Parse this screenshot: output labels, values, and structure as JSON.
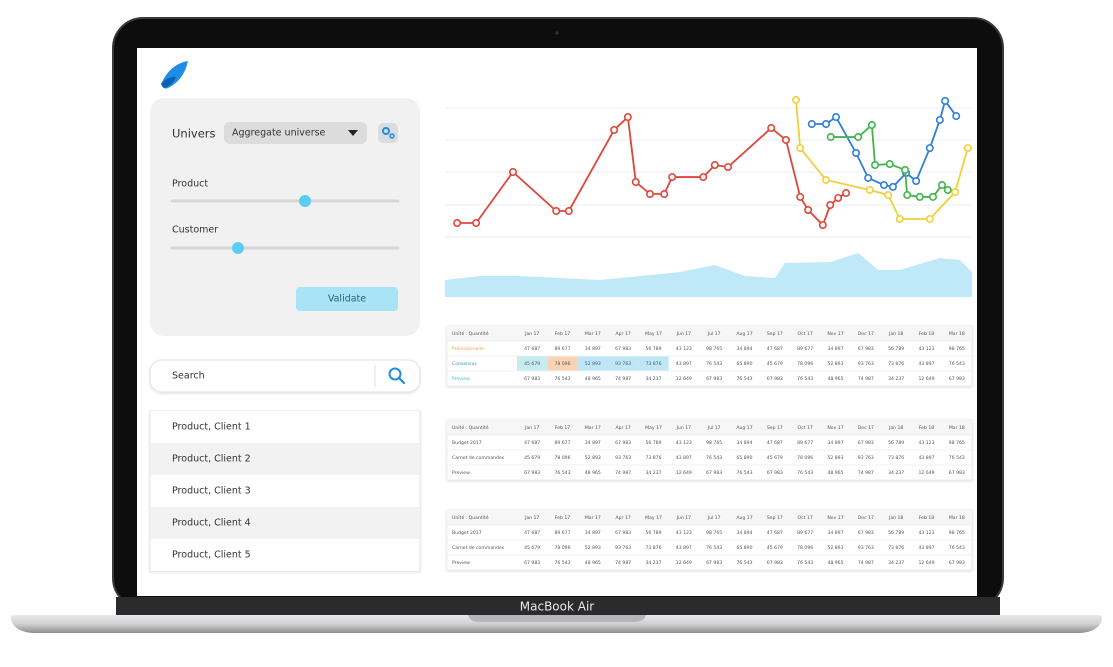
{
  "device": {
    "label": "MacBook Air"
  },
  "filters": {
    "universe_label": "Univers",
    "universe_value": "Aggregate universe",
    "sliders": [
      {
        "label": "Product"
      },
      {
        "label": "Customer"
      }
    ],
    "button": "Validate"
  },
  "search": {
    "placeholder": "Search"
  },
  "list": [
    "Product, Client 1",
    "Product, Client 2",
    "Product, Client 3",
    "Product, Client 4",
    "Product, Client 5"
  ],
  "chart_data": [
    {
      "type": "line",
      "xlim": [
        0,
        100
      ],
      "ylim": [
        0,
        100
      ],
      "series": [
        {
          "color": "#e0453a",
          "x": [
            2.3,
            5.9,
            12.9,
            21.1,
            23.5,
            32.1,
            34.7,
            36.2,
            38.9,
            41.6,
            43.1,
            49.0,
            51.2,
            53.7,
            61.9,
            64.7,
            67.4,
            68.9,
            71.7,
            73.1,
            74.6,
            76.1
          ],
          "values": [
            11.7,
            11.7,
            46.9,
            20.0,
            20.0,
            75.9,
            84.8,
            40.0,
            31.7,
            31.7,
            43.4,
            43.4,
            51.7,
            50.3,
            77.2,
            69.0,
            29.7,
            20.7,
            10.3,
            24.1,
            29.0,
            32.4
          ]
        },
        {
          "color": "#f2cf3a",
          "x": [
            66.6,
            67.4,
            72.3,
            80.6,
            84.1,
            86.3,
            92.0,
            96.8,
            99.2
          ],
          "values": [
            96.6,
            63.4,
            41.4,
            34.5,
            31.0,
            14.5,
            14.5,
            33.1,
            63.4
          ]
        },
        {
          "color": "#2f7fd8",
          "x": [
            69.6,
            72.3,
            74.2,
            78.0,
            80.3,
            83.3,
            85.0,
            87.5,
            89.4,
            92.0,
            93.9,
            94.9,
            97.0
          ],
          "values": [
            80.0,
            80.0,
            84.8,
            60.0,
            42.8,
            37.9,
            36.6,
            46.2,
            40.7,
            63.4,
            82.8,
            95.9,
            85.5
          ]
        },
        {
          "color": "#3fb54a",
          "x": [
            73.2,
            78.4,
            81.0,
            81.6,
            84.4,
            87.3,
            87.7,
            90.1,
            92.6,
            94.3,
            95.4
          ],
          "values": [
            71.0,
            71.0,
            79.3,
            51.7,
            52.4,
            48.3,
            31.0,
            29.7,
            29.7,
            37.9,
            34.5
          ]
        }
      ]
    },
    {
      "type": "area",
      "xlim": [
        0,
        100
      ],
      "ylim": [
        0,
        100
      ],
      "color": "#bfe9f8",
      "x": [
        0,
        6.6,
        14.2,
        21.8,
        29.4,
        37.0,
        44.6,
        51.2,
        56.9,
        62.6,
        64.5,
        73.1,
        78.4,
        82.2,
        86.3,
        93.9,
        97.7,
        100
      ],
      "values": [
        37.8,
        46.7,
        46.7,
        42.2,
        37.8,
        46.7,
        55.6,
        71.1,
        46.7,
        42.2,
        75.6,
        77.8,
        97.8,
        60.0,
        60.0,
        86.7,
        82.2,
        55.6
      ]
    }
  ],
  "tables": [
    {
      "header": [
        "Unité : Quantité",
        "Jan 17",
        "Feb 17",
        "Mar 17",
        "Apr 17",
        "May 17",
        "Jun 17",
        "Jul 17",
        "Aug 17",
        "Sep 17",
        "Oct 17",
        "Nov 17",
        "Dec 17",
        "Jan 18",
        "Feb 18",
        "Mar 18"
      ],
      "rows": [
        [
          "Prévisionnelle",
          "47 687",
          "89 677",
          "34 897",
          "67 983",
          "56 789",
          "43 123",
          "98 765",
          "34 894",
          "47 687",
          "89 677",
          "34 897",
          "67 983",
          "56 789",
          "43 123",
          "98 765"
        ],
        [
          "Consensus",
          "45 679",
          "78 096",
          "52 893",
          "93 763",
          "73 876",
          "43 897",
          "76 543",
          "65 890",
          "45 679",
          "78 096",
          "52 893",
          "93 763",
          "73 876",
          "43 897",
          "76 543"
        ],
        [
          "Preview",
          "67 983",
          "76 543",
          "48 965",
          "74 987",
          "34 237",
          "12 649",
          "67 983",
          "76 543",
          "67 983",
          "76 543",
          "48 965",
          "74 987",
          "34 237",
          "12 649",
          "67 983"
        ]
      ]
    },
    {
      "header": [
        "Unité : Quantité",
        "Jan 17",
        "Feb 17",
        "Mar 17",
        "Apr 17",
        "May 17",
        "Jun 17",
        "Jul 17",
        "Aug 17",
        "Sep 17",
        "Oct 17",
        "Nov 17",
        "Dec 17",
        "Jan 18",
        "Feb 18",
        "Mar 18"
      ],
      "rows": [
        [
          "Budget 2017",
          "47 687",
          "89 677",
          "34 897",
          "67 983",
          "56 789",
          "43 123",
          "98 765",
          "34 894",
          "47 687",
          "89 677",
          "34 897",
          "67 983",
          "56 789",
          "43 123",
          "98 765"
        ],
        [
          "Carnet de commandes",
          "45 679",
          "78 096",
          "52 893",
          "93 763",
          "73 876",
          "43 897",
          "76 543",
          "65 890",
          "45 679",
          "78 096",
          "52 893",
          "93 763",
          "73 876",
          "43 897",
          "76 543"
        ],
        [
          "Preview",
          "67 983",
          "76 543",
          "48 965",
          "74 987",
          "34 237",
          "12 649",
          "67 983",
          "76 543",
          "67 983",
          "76 543",
          "48 965",
          "74 987",
          "34 237",
          "12 649",
          "67 983"
        ]
      ]
    },
    {
      "header": [
        "Unité : Quantité",
        "Jan 17",
        "Feb 17",
        "Mar 17",
        "Apr 17",
        "May 17",
        "Jun 17",
        "Jul 17",
        "Aug 17",
        "Sep 17",
        "Oct 17",
        "Nov 17",
        "Dec 17",
        "Jan 18",
        "Feb 18",
        "Mar 18"
      ],
      "rows": [
        [
          "Budget 2017",
          "47 687",
          "89 677",
          "34 897",
          "67 983",
          "56 789",
          "43 123",
          "98 765",
          "34 894",
          "47 687",
          "89 677",
          "34 897",
          "67 983",
          "56 789",
          "43 123",
          "98 765"
        ],
        [
          "Carnet de commandes",
          "45 679",
          "78 096",
          "52 893",
          "93 763",
          "73 876",
          "43 897",
          "76 543",
          "65 890",
          "45 679",
          "78 096",
          "52 893",
          "93 763",
          "73 876",
          "43 897",
          "76 543"
        ],
        [
          "Preview",
          "67 983",
          "76 543",
          "48 965",
          "74 987",
          "34 237",
          "12 649",
          "67 983",
          "76 543",
          "67 983",
          "76 543",
          "48 965",
          "74 987",
          "34 237",
          "12 649",
          "67 983"
        ]
      ]
    }
  ]
}
